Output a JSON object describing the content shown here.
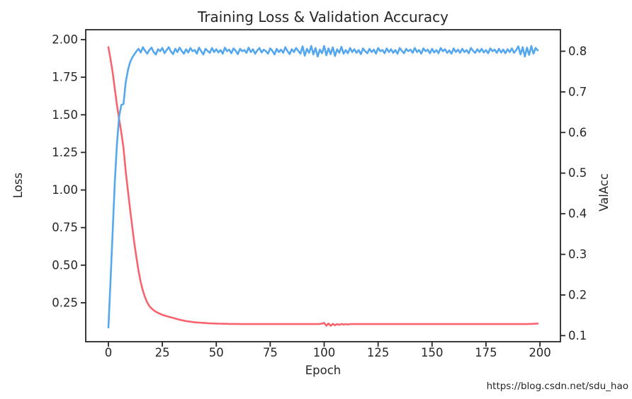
{
  "colors": {
    "axes_and_text": "#262626",
    "background": "#ffffff",
    "loss_line": "#F8636E",
    "valacc_line": "#55A7EE",
    "watermark": "#e5e5e8"
  },
  "watermark": {
    "text": "https://blog.csdn.net/sdu_hao"
  },
  "chart_data": {
    "type": "line",
    "title": "Training Loss & Validation Accuracy",
    "xlabel": "Epoch",
    "ylabel_left": "Loss",
    "ylabel_right": "ValAcc",
    "grid": false,
    "legend": "none",
    "xlim": [
      -10.5,
      209.5
    ],
    "ylim_left": [
      -0.009,
      2.066
    ],
    "ylim_right": [
      0.085,
      0.853
    ],
    "x_ticks": {
      "values": [
        0,
        25,
        50,
        75,
        100,
        125,
        150,
        175,
        200
      ],
      "labels": [
        "0",
        "25",
        "50",
        "75",
        "100",
        "125",
        "150",
        "175",
        "200"
      ]
    },
    "y_ticks_left": {
      "values": [
        0.25,
        0.5,
        0.75,
        1.0,
        1.25,
        1.5,
        1.75,
        2.0
      ],
      "labels": [
        "0.25",
        "0.50",
        "0.75",
        "1.00",
        "1.25",
        "1.50",
        "1.75",
        "2.00"
      ]
    },
    "y_ticks_right": {
      "values": [
        0.1,
        0.2,
        0.3,
        0.4,
        0.5,
        0.6,
        0.7,
        0.8
      ],
      "labels": [
        "0.1",
        "0.2",
        "0.3",
        "0.4",
        "0.5",
        "0.6",
        "0.7",
        "0.8"
      ]
    },
    "x_start": 0,
    "x_step": 1,
    "series": [
      {
        "name": "Training Loss",
        "slug": "training-loss-line",
        "axis": "left",
        "color": "#F8636E",
        "values": [
          1.95,
          1.87,
          1.78,
          1.67,
          1.56,
          1.47,
          1.38,
          1.28,
          1.13,
          1.0,
          0.88,
          0.76,
          0.65,
          0.55,
          0.46,
          0.385,
          0.33,
          0.285,
          0.252,
          0.228,
          0.212,
          0.2,
          0.19,
          0.183,
          0.176,
          0.17,
          0.165,
          0.161,
          0.157,
          0.153,
          0.149,
          0.145,
          0.141,
          0.137,
          0.134,
          0.131,
          0.128,
          0.126,
          0.124,
          0.122,
          0.12,
          0.119,
          0.118,
          0.117,
          0.116,
          0.115,
          0.114,
          0.113,
          0.113,
          0.112,
          0.112,
          0.111,
          0.111,
          0.11,
          0.11,
          0.11,
          0.109,
          0.109,
          0.109,
          0.109,
          0.109,
          0.108,
          0.108,
          0.108,
          0.108,
          0.108,
          0.108,
          0.108,
          0.108,
          0.108,
          0.108,
          0.108,
          0.108,
          0.108,
          0.108,
          0.108,
          0.108,
          0.108,
          0.108,
          0.108,
          0.108,
          0.108,
          0.108,
          0.108,
          0.108,
          0.108,
          0.108,
          0.108,
          0.108,
          0.108,
          0.108,
          0.108,
          0.108,
          0.108,
          0.108,
          0.108,
          0.108,
          0.108,
          0.109,
          0.111,
          0.116,
          0.098,
          0.112,
          0.097,
          0.11,
          0.1,
          0.108,
          0.103,
          0.109,
          0.105,
          0.108,
          0.106,
          0.108,
          0.108,
          0.108,
          0.108,
          0.108,
          0.108,
          0.108,
          0.108,
          0.108,
          0.108,
          0.108,
          0.108,
          0.108,
          0.108,
          0.108,
          0.108,
          0.108,
          0.108,
          0.108,
          0.108,
          0.108,
          0.108,
          0.108,
          0.108,
          0.108,
          0.108,
          0.108,
          0.108,
          0.108,
          0.108,
          0.108,
          0.108,
          0.108,
          0.108,
          0.108,
          0.108,
          0.108,
          0.108,
          0.108,
          0.108,
          0.108,
          0.108,
          0.108,
          0.108,
          0.108,
          0.108,
          0.108,
          0.108,
          0.108,
          0.108,
          0.108,
          0.108,
          0.108,
          0.108,
          0.108,
          0.108,
          0.108,
          0.108,
          0.108,
          0.108,
          0.108,
          0.108,
          0.108,
          0.108,
          0.108,
          0.108,
          0.108,
          0.108,
          0.108,
          0.108,
          0.108,
          0.108,
          0.108,
          0.108,
          0.108,
          0.108,
          0.108,
          0.108,
          0.108,
          0.108,
          0.108,
          0.108,
          0.108,
          0.109,
          0.109,
          0.11,
          0.111,
          0.112
        ]
      },
      {
        "name": "Validation Accuracy",
        "slug": "validation-accuracy-line",
        "axis": "right",
        "color": "#55A7EE",
        "values": [
          0.12,
          0.235,
          0.36,
          0.48,
          0.575,
          0.64,
          0.668,
          0.67,
          0.722,
          0.752,
          0.772,
          0.784,
          0.792,
          0.8,
          0.806,
          0.797,
          0.81,
          0.801,
          0.794,
          0.803,
          0.809,
          0.798,
          0.792,
          0.805,
          0.8,
          0.808,
          0.795,
          0.803,
          0.81,
          0.799,
          0.793,
          0.806,
          0.798,
          0.809,
          0.801,
          0.794,
          0.805,
          0.797,
          0.808,
          0.8,
          0.803,
          0.794,
          0.809,
          0.8,
          0.792,
          0.806,
          0.801,
          0.796,
          0.808,
          0.798,
          0.805,
          0.797,
          0.803,
          0.794,
          0.809,
          0.8,
          0.804,
          0.795,
          0.807,
          0.801,
          0.793,
          0.806,
          0.8,
          0.803,
          0.796,
          0.809,
          0.798,
          0.805,
          0.794,
          0.802,
          0.808,
          0.797,
          0.804,
          0.8,
          0.794,
          0.807,
          0.801,
          0.792,
          0.806,
          0.798,
          0.804,
          0.796,
          0.81,
          0.8,
          0.793,
          0.805,
          0.798,
          0.808,
          0.801,
          0.794,
          0.812,
          0.789,
          0.806,
          0.796,
          0.813,
          0.792,
          0.808,
          0.787,
          0.804,
          0.795,
          0.813,
          0.79,
          0.807,
          0.793,
          0.81,
          0.788,
          0.805,
          0.796,
          0.811,
          0.794,
          0.803,
          0.795,
          0.808,
          0.798,
          0.805,
          0.796,
          0.803,
          0.793,
          0.807,
          0.8,
          0.795,
          0.806,
          0.798,
          0.804,
          0.794,
          0.808,
          0.8,
          0.803,
          0.795,
          0.807,
          0.798,
          0.805,
          0.796,
          0.803,
          0.794,
          0.808,
          0.801,
          0.795,
          0.806,
          0.8,
          0.804,
          0.796,
          0.808,
          0.798,
          0.803,
          0.794,
          0.807,
          0.8,
          0.804,
          0.795,
          0.806,
          0.797,
          0.803,
          0.795,
          0.808,
          0.8,
          0.805,
          0.796,
          0.802,
          0.794,
          0.807,
          0.798,
          0.804,
          0.796,
          0.806,
          0.798,
          0.803,
          0.795,
          0.808,
          0.801,
          0.796,
          0.805,
          0.798,
          0.806,
          0.797,
          0.803,
          0.795,
          0.807,
          0.8,
          0.804,
          0.796,
          0.806,
          0.797,
          0.804,
          0.795,
          0.805,
          0.798,
          0.807,
          0.796,
          0.803,
          0.812,
          0.792,
          0.81,
          0.787,
          0.809,
          0.791,
          0.813,
          0.794,
          0.808,
          0.802
        ]
      }
    ]
  }
}
